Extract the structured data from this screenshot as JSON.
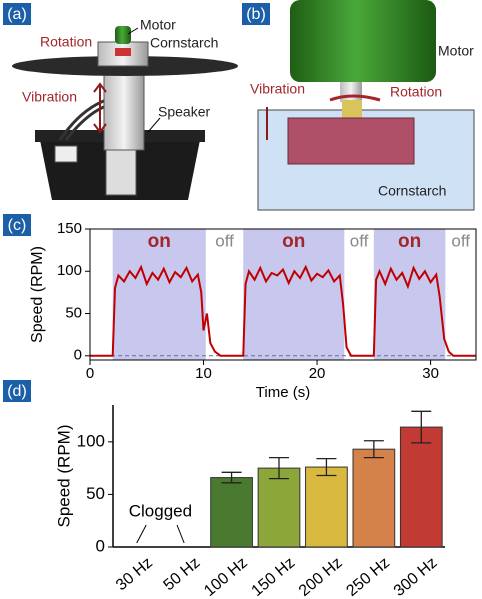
{
  "panel_a": {
    "label": "(a)",
    "texts": [
      "Motor",
      "Cornstarch",
      "Rotation",
      "Vibration",
      "Speaker"
    ]
  },
  "panel_b": {
    "label": "(b)",
    "texts": [
      "Motor",
      "Rotation",
      "Vibration",
      "Cornstarch"
    ]
  },
  "chart_data": [
    {
      "type": "line",
      "label": "(c)",
      "xlabel": "Time (s)",
      "ylabel": "Speed (RPM)",
      "x": [
        0,
        2,
        2.2,
        2.5,
        3,
        3.5,
        4,
        4.5,
        5,
        5.5,
        6,
        6.5,
        7,
        7.5,
        8,
        8.5,
        9,
        9.5,
        9.8,
        10,
        10.3,
        10.6,
        11,
        11.5,
        13.5,
        13.7,
        14,
        14.5,
        15,
        15.5,
        16,
        16.5,
        17,
        17.5,
        18,
        18.5,
        19,
        19.5,
        20,
        20.5,
        21,
        21.5,
        22,
        22.3,
        22.6,
        23,
        25,
        25.2,
        25.5,
        26,
        26.5,
        27,
        27.5,
        28,
        28.5,
        29,
        29.5,
        30,
        30.5,
        30.8,
        31.2,
        31.6,
        32,
        34
      ],
      "values": [
        0,
        0,
        80,
        95,
        88,
        100,
        92,
        105,
        85,
        98,
        90,
        103,
        87,
        99,
        93,
        104,
        88,
        96,
        75,
        30,
        50,
        15,
        5,
        0,
        0,
        85,
        100,
        90,
        104,
        88,
        98,
        95,
        102,
        86,
        100,
        92,
        105,
        89,
        97,
        93,
        101,
        88,
        95,
        60,
        10,
        0,
        0,
        90,
        100,
        85,
        103,
        90,
        98,
        82,
        104,
        91,
        100,
        87,
        96,
        70,
        20,
        5,
        0,
        0
      ],
      "color": "#c00000",
      "spans": [
        {
          "start": 2,
          "end": 10.2,
          "label": "on"
        },
        {
          "start": 13.5,
          "end": 22.4,
          "label": "on"
        },
        {
          "start": 25,
          "end": 31.3,
          "label": "on"
        }
      ],
      "span_color": "#c8c8ee",
      "off_labels": [
        "off",
        "off",
        "off"
      ],
      "reference_line": 0,
      "xlim": [
        0,
        34
      ],
      "ylim": [
        -5,
        150
      ],
      "xticks": [
        0,
        10,
        20,
        30
      ],
      "yticks": [
        0,
        50,
        100,
        150
      ]
    },
    {
      "type": "bar",
      "label": "(d)",
      "ylabel": "Speed (RPM)",
      "categories": [
        "30 Hz",
        "50 Hz",
        "100 Hz",
        "150 Hz",
        "200 Hz",
        "250 Hz",
        "300 Hz"
      ],
      "values": [
        null,
        null,
        66,
        75,
        76,
        93,
        114
      ],
      "errors": [
        null,
        null,
        5,
        10,
        8,
        8,
        15
      ],
      "colors": [
        null,
        null,
        "#4a7a30",
        "#8da63a",
        "#d9b840",
        "#d4824a",
        "#c13a33"
      ],
      "annotation": "Clogged",
      "ylim": [
        0,
        135
      ],
      "yticks": [
        0,
        50,
        100
      ]
    }
  ]
}
